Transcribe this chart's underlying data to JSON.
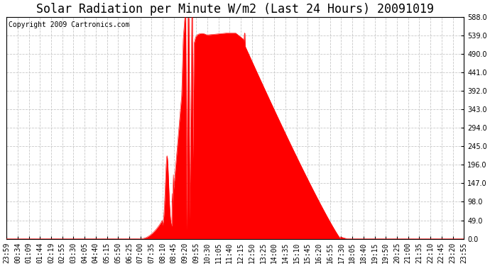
{
  "title": "Solar Radiation per Minute W/m2 (Last 24 Hours) 20091019",
  "copyright_text": "Copyright 2009 Cartronics.com",
  "fill_color": "#FF0000",
  "line_color": "#FF0000",
  "background_color": "#FFFFFF",
  "grid_color": "#C8C8C8",
  "dashed_line_color": "#FF0000",
  "y_ticks": [
    0.0,
    49.0,
    98.0,
    147.0,
    196.0,
    245.0,
    294.0,
    343.0,
    392.0,
    441.0,
    490.0,
    539.0,
    588.0
  ],
  "y_min": 0.0,
  "y_max": 588.0,
  "x_labels": [
    "23:59",
    "00:34",
    "01:09",
    "01:44",
    "02:19",
    "02:55",
    "03:30",
    "04:05",
    "04:40",
    "05:15",
    "05:50",
    "06:25",
    "07:00",
    "07:35",
    "08:10",
    "08:45",
    "09:20",
    "09:55",
    "10:30",
    "11:05",
    "11:40",
    "12:15",
    "12:50",
    "13:25",
    "14:00",
    "14:35",
    "15:10",
    "15:45",
    "16:20",
    "16:55",
    "17:30",
    "18:05",
    "18:40",
    "19:15",
    "19:50",
    "20:25",
    "21:00",
    "21:35",
    "22:10",
    "22:45",
    "23:20",
    "23:55"
  ],
  "title_fontsize": 12,
  "copyright_fontsize": 7,
  "tick_fontsize": 7,
  "figsize": [
    6.9,
    3.75
  ],
  "dpi": 100
}
